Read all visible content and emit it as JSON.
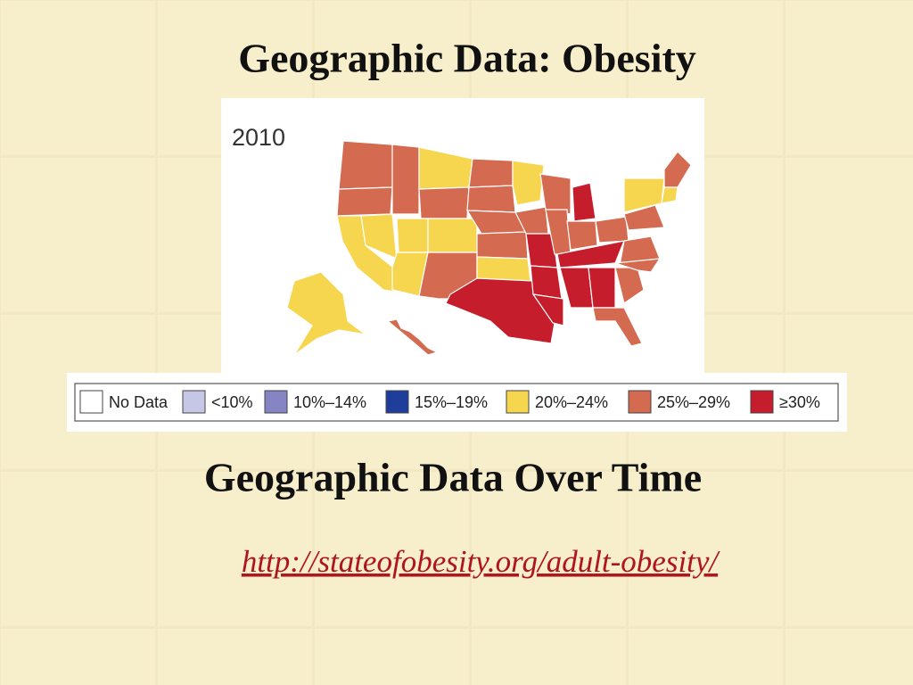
{
  "header": {
    "title": "Geographic Data:  Obesity"
  },
  "map": {
    "year": "2010",
    "legend": [
      {
        "label": "No Data",
        "color": "#ffffff"
      },
      {
        "label": "<10%",
        "color": "#c6c6e6"
      },
      {
        "label": "10%–14%",
        "color": "#8585c3"
      },
      {
        "label": "15%–19%",
        "color": "#1f3d9b"
      },
      {
        "label": "20%–24%",
        "color": "#f7d64f"
      },
      {
        "label": "25%–29%",
        "color": "#d46a4f"
      },
      {
        "label": "≥30%",
        "color": "#c51d2b"
      }
    ]
  },
  "subtitle": "Geographic Data Over Time",
  "link": "http://stateofobesity.org/adult-obesity/"
}
